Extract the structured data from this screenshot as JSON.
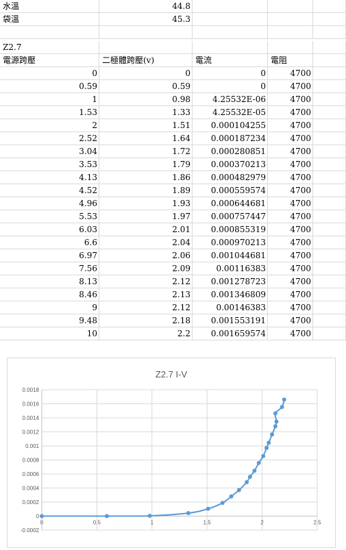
{
  "header_rows": [
    {
      "label": "水溫",
      "value": "44.8"
    },
    {
      "label": "袋溫",
      "value": "45.3"
    }
  ],
  "sample_label": "Z2.7",
  "table": {
    "headers": [
      "電源跨壓",
      "二極體跨壓(v)",
      "電流",
      "電阻"
    ],
    "rows": [
      [
        "0",
        "0",
        "0",
        "4700"
      ],
      [
        "0.59",
        "0.59",
        "0",
        "4700"
      ],
      [
        "1",
        "0.98",
        "4.25532E-06",
        "4700"
      ],
      [
        "1.53",
        "1.33",
        "4.25532E-05",
        "4700"
      ],
      [
        "2",
        "1.51",
        "0.000104255",
        "4700"
      ],
      [
        "2.52",
        "1.64",
        "0.000187234",
        "4700"
      ],
      [
        "3.04",
        "1.72",
        "0.000280851",
        "4700"
      ],
      [
        "3.53",
        "1.79",
        "0.000370213",
        "4700"
      ],
      [
        "4.13",
        "1.86",
        "0.000482979",
        "4700"
      ],
      [
        "4.52",
        "1.89",
        "0.000559574",
        "4700"
      ],
      [
        "4.96",
        "1.93",
        "0.000644681",
        "4700"
      ],
      [
        "5.53",
        "1.97",
        "0.000757447",
        "4700"
      ],
      [
        "6.03",
        "2.01",
        "0.000855319",
        "4700"
      ],
      [
        "6.6",
        "2.04",
        "0.000970213",
        "4700"
      ],
      [
        "6.97",
        "2.06",
        "0.001044681",
        "4700"
      ],
      [
        "7.56",
        "2.09",
        "0.00116383",
        "4700"
      ],
      [
        "8.13",
        "2.12",
        "0.001278723",
        "4700"
      ],
      [
        "8.46",
        "2.13",
        "0.001346809",
        "4700"
      ],
      [
        "9",
        "2.12",
        "0.00146383",
        "4700"
      ],
      [
        "9.48",
        "2.18",
        "0.001553191",
        "4700"
      ],
      [
        "10",
        "2.2",
        "0.001659574",
        "4700"
      ]
    ]
  },
  "chart_data": {
    "type": "scatter",
    "title": "Z2.7 I-V",
    "xlabel": "",
    "ylabel": "",
    "xlim": [
      0,
      2.5
    ],
    "ylim": [
      -0.0002,
      0.0018
    ],
    "x_ticks": [
      "0",
      "0.5",
      "1",
      "1.5",
      "2",
      "2.5"
    ],
    "y_ticks": [
      "-0.0002",
      "0",
      "0.0002",
      "0.0004",
      "0.0006",
      "0.0008",
      "0.001",
      "0.0012",
      "0.0014",
      "0.0016",
      "0.0018"
    ],
    "grid": true,
    "smoothed_line": true,
    "series_color": "#5b9bd5",
    "x": [
      0,
      0.59,
      0.98,
      1.33,
      1.51,
      1.64,
      1.72,
      1.79,
      1.86,
      1.89,
      1.93,
      1.97,
      2.01,
      2.04,
      2.06,
      2.09,
      2.12,
      2.13,
      2.12,
      2.18,
      2.2
    ],
    "y": [
      0,
      0,
      4.25532e-06,
      4.25532e-05,
      0.000104255,
      0.000187234,
      0.000280851,
      0.000370213,
      0.000482979,
      0.000559574,
      0.000644681,
      0.000757447,
      0.000855319,
      0.000970213,
      0.001044681,
      0.00116383,
      0.001278723,
      0.001346809,
      0.00146383,
      0.001553191,
      0.001659574
    ]
  }
}
